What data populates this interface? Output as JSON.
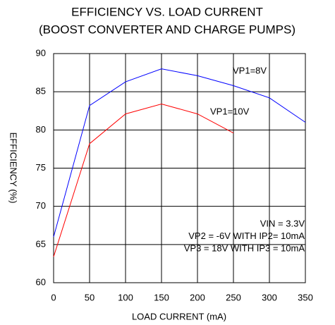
{
  "chart_data": {
    "type": "line",
    "title": [
      "EFFICIENCY VS. LOAD CURRENT",
      "(BOOST CONVERTER AND CHARGE PUMPS)"
    ],
    "x_label": "LOAD CURRENT (mA)",
    "y_label": "EFFICIENCY (%)",
    "x": [
      0,
      50,
      100,
      150,
      200,
      250,
      300,
      350
    ],
    "series": [
      {
        "name": "VP1=8V",
        "color": "#0000ff",
        "values": [
          66,
          83.2,
          86.3,
          88,
          87.1,
          85.8,
          84.2,
          81
        ]
      },
      {
        "name": "VP1=10V",
        "color": "#ff0000",
        "values": [
          63.4,
          78.2,
          82.1,
          83.4,
          82.1,
          79.6,
          null,
          null
        ]
      }
    ],
    "annotations": [
      "VIN = 3.3V",
      "VP2 = -6V WITH IP2= 10mA",
      "VP3 = 18V WITH IP3 = 10mA"
    ],
    "xlim": [
      0,
      350
    ],
    "xticks": [
      0,
      50,
      100,
      150,
      200,
      250,
      300,
      350
    ],
    "ylim": [
      60,
      90
    ],
    "yticks": [
      60,
      65,
      70,
      75,
      80,
      85,
      90
    ],
    "grid": true
  }
}
